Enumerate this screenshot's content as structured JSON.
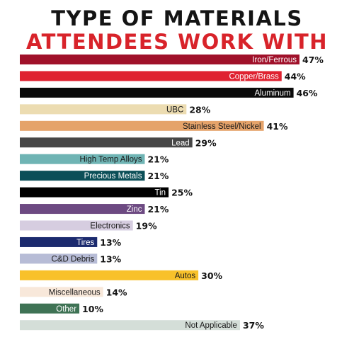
{
  "title": {
    "line1": "TYPE OF MATERIALS",
    "line2": "ATTENDEES WORK WITH"
  },
  "colors": {
    "title_line1": "#141414",
    "title_line2": "#d8232a"
  },
  "chart_data": {
    "type": "bar",
    "orientation": "horizontal",
    "title": "TYPE OF MATERIALS ATTENDEES WORK WITH",
    "xlabel": "",
    "ylabel": "",
    "xlim": [
      0,
      47
    ],
    "grid": false,
    "legend": "none",
    "value_suffix": "%",
    "categories": [
      "Iron/Ferrous",
      "Copper/Brass",
      "Aluminum",
      "UBC",
      "Stainless Steel/Nickel",
      "Lead",
      "High Temp Alloys",
      "Precious Metals",
      "Tin",
      "Zinc",
      "Electronics",
      "Tires",
      "C&D Debris",
      "Autos",
      "Miscellaneous",
      "Other",
      "Not Applicable"
    ],
    "values": [
      47,
      44,
      46,
      28,
      41,
      29,
      21,
      21,
      25,
      21,
      19,
      13,
      13,
      30,
      14,
      10,
      37
    ],
    "bar_colors": [
      "#a0112a",
      "#df2230",
      "#0a0a0a",
      "#ecdcb1",
      "#e5a36a",
      "#474747",
      "#6fb4b4",
      "#0b4f58",
      "#000000",
      "#6d4a82",
      "#d6cde0",
      "#1b2a6e",
      "#b7bcd6",
      "#f8c12a",
      "#f8e8da",
      "#3f7355",
      "#d4ded8"
    ],
    "label_colors": [
      "#ffffff",
      "#ffffff",
      "#ffffff",
      "#1a1a1a",
      "#1a1a1a",
      "#ffffff",
      "#1a1a1a",
      "#ffffff",
      "#ffffff",
      "#ffffff",
      "#1a1a1a",
      "#ffffff",
      "#1a1a1a",
      "#1a1a1a",
      "#1a1a1a",
      "#ffffff",
      "#1a1a1a"
    ]
  }
}
